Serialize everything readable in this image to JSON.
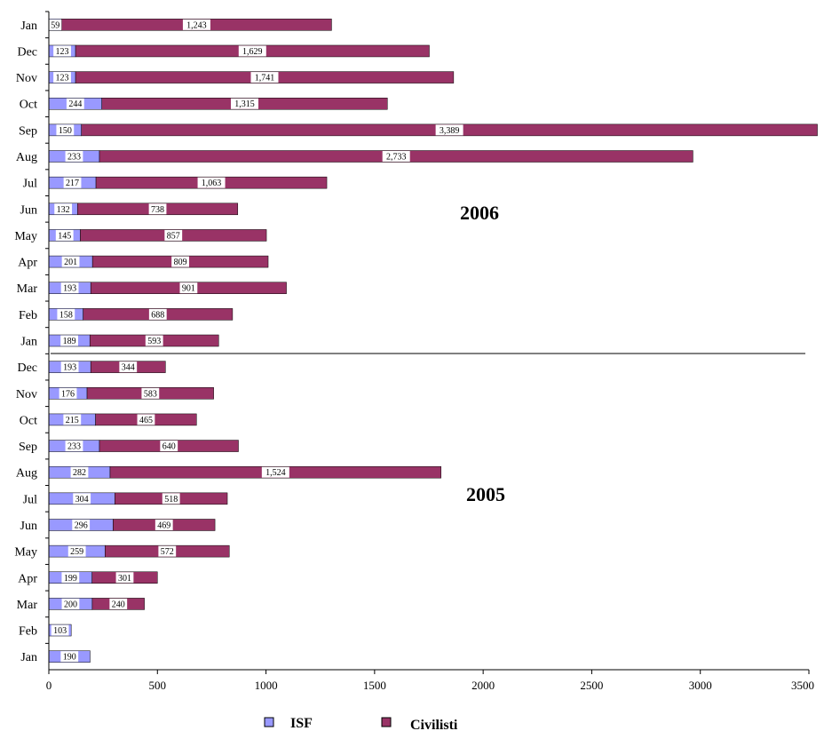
{
  "chart_data": {
    "type": "bar",
    "orientation": "horizontal",
    "stacked": true,
    "categories": [
      "Jan",
      "Dec",
      "Nov",
      "Oct",
      "Sep",
      "Aug",
      "Jul",
      "Jun",
      "May",
      "Apr",
      "Mar",
      "Feb",
      "Jan",
      "Dec",
      "Nov",
      "Oct",
      "Sep",
      "Aug",
      "Jul",
      "Jun",
      "May",
      "Apr",
      "Mar",
      "Feb",
      "Jan"
    ],
    "series": [
      {
        "name": "ISF",
        "color": "#9999ff",
        "values": [
          59,
          123,
          123,
          244,
          150,
          233,
          217,
          132,
          145,
          201,
          193,
          158,
          189,
          193,
          176,
          215,
          233,
          282,
          304,
          296,
          259,
          199,
          200,
          103,
          190
        ],
        "labels": [
          "59",
          "123",
          "123",
          "244",
          "150",
          "233",
          "217",
          "132",
          "145",
          "201",
          "193",
          "158",
          "189",
          "193",
          "176",
          "215",
          "233",
          "282",
          "304",
          "296",
          "259",
          "199",
          "200",
          "103",
          "190"
        ]
      },
      {
        "name": "Civilisti",
        "color": "#993366",
        "values": [
          1243,
          1629,
          1741,
          1315,
          3389,
          2733,
          1063,
          738,
          857,
          809,
          901,
          688,
          593,
          344,
          583,
          465,
          640,
          1524,
          518,
          469,
          572,
          301,
          240,
          0,
          0
        ],
        "labels": [
          "1,243",
          "1,629",
          "1,741",
          "1,315",
          "3,389",
          "2,733",
          "1,063",
          "738",
          "857",
          "809",
          "901",
          "688",
          "593",
          "344",
          "583",
          "465",
          "640",
          "1,524",
          "518",
          "469",
          "572",
          "301",
          "240",
          "",
          ""
        ]
      }
    ],
    "xlim": [
      0,
      3500
    ],
    "xticks": [
      0,
      500,
      1000,
      1500,
      2000,
      2500,
      3000,
      3500
    ],
    "group_labels": [
      "2006",
      "2005"
    ],
    "legend_position": "bottom",
    "grid": false,
    "title": "",
    "xlabel": "",
    "ylabel": ""
  }
}
